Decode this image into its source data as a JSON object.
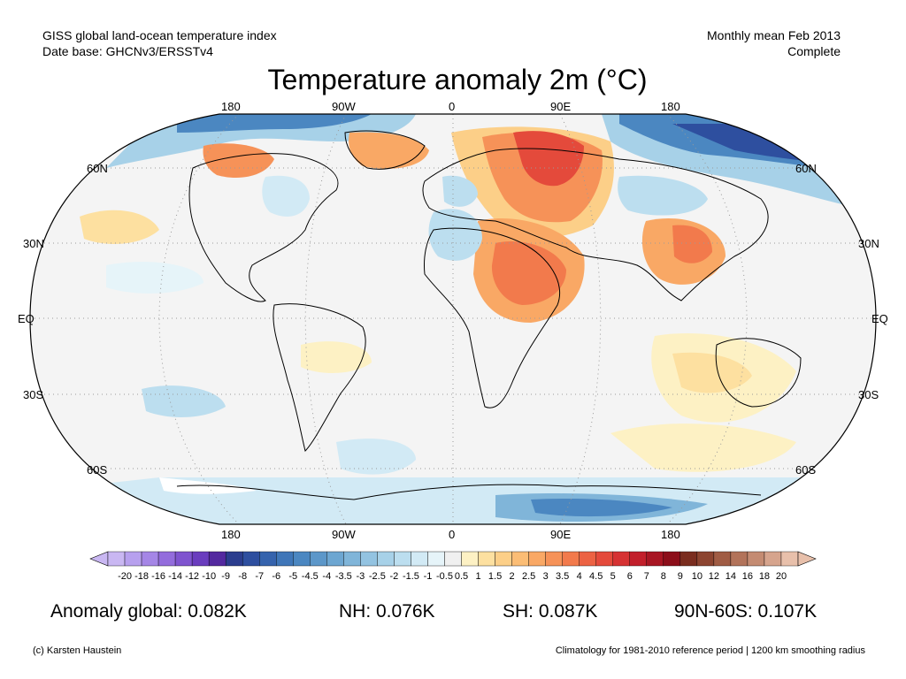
{
  "header": {
    "left_line1": "GISS global land-ocean temperature index",
    "left_line2": "Date base: GHCNv3/ERSSTv4",
    "right_line1": "Monthly mean Feb 2013",
    "right_line2": "Complete"
  },
  "title": "Temperature anomaly 2m (°C)",
  "map": {
    "top_longitude_labels": [
      "180",
      "90W",
      "0",
      "90E",
      "180"
    ],
    "bottom_longitude_labels": [
      "180",
      "90W",
      "0",
      "90E",
      "180"
    ],
    "left_latitude_labels": [
      "60N",
      "30N",
      "EQ",
      "30S",
      "60S"
    ],
    "right_latitude_labels": [
      "60N",
      "30N",
      "EQ",
      "30S",
      "60S"
    ]
  },
  "colorbar": {
    "tick_labels": [
      "-20",
      "-18",
      "-16",
      "-14",
      "-12",
      "-10",
      "-9",
      "-8",
      "-7",
      "-6",
      "-5",
      "-4.5",
      "-4",
      "-3.5",
      "-3",
      "-2.5",
      "-2",
      "-1.5",
      "-1",
      "-0.5",
      "0.5",
      "1",
      "1.5",
      "2",
      "2.5",
      "3",
      "3.5",
      "4",
      "4.5",
      "5",
      "6",
      "7",
      "8",
      "9",
      "10",
      "12",
      "14",
      "16",
      "18",
      "20"
    ],
    "colors": [
      "#c9b7f2",
      "#b7a0ee",
      "#a586e6",
      "#936cdc",
      "#7f54cf",
      "#6a3dbe",
      "#53299f",
      "#2b3d8e",
      "#2e4f9f",
      "#3563ad",
      "#3f76b8",
      "#4b87c1",
      "#5c97c9",
      "#6da6d1",
      "#80b5d9",
      "#93c3e1",
      "#a7d1e8",
      "#bcdeef",
      "#d2eaf5",
      "#e6f4f9",
      "#f0f0f0",
      "#fdf1c4",
      "#fde0a0",
      "#fccf88",
      "#fbbd75",
      "#f9a865",
      "#f69258",
      "#f27a4c",
      "#ec6243",
      "#e44a3b",
      "#d63233",
      "#c21f2b",
      "#a81623",
      "#8c0e1a",
      "#7a2d1f",
      "#8c4430",
      "#a05c44",
      "#b2735a",
      "#c48b72",
      "#d6a48d",
      "#e8c0ab"
    ]
  },
  "stats": {
    "global": "Anomaly global: 0.082K",
    "nh": "NH: 0.076K",
    "sh": "SH: 0.087K",
    "high_lat": "90N-60S: 0.107K"
  },
  "footer": {
    "left": "(c) Karsten Haustein",
    "right": "Climatology for 1981-2010 reference period | 1200 km smoothing radius"
  }
}
